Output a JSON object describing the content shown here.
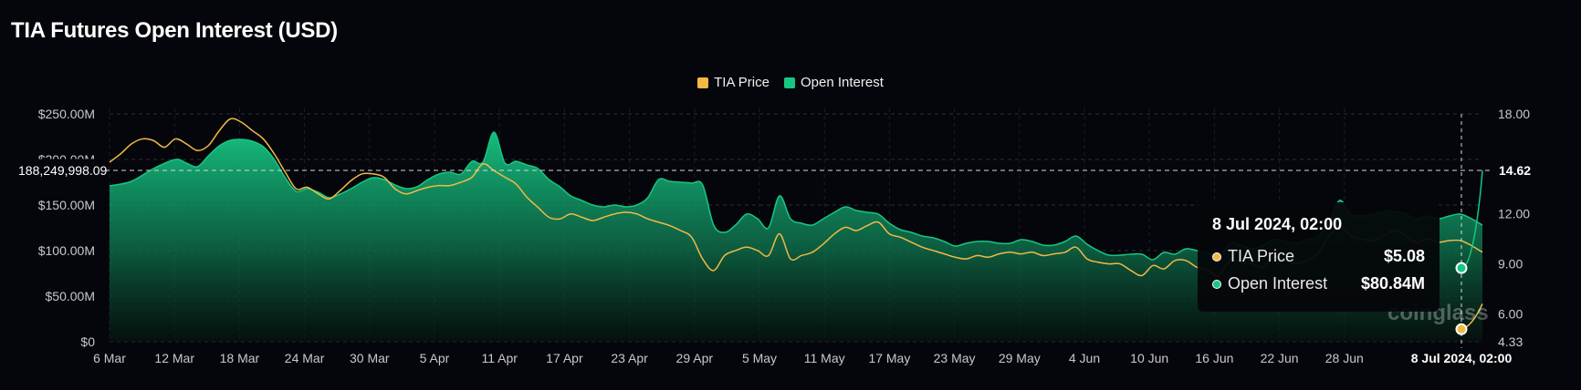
{
  "title": "TIA Futures Open Interest (USD)",
  "legend": [
    {
      "name": "TIA Price",
      "color": "#f3b944"
    },
    {
      "name": "Open Interest",
      "color": "#16c784"
    }
  ],
  "watermark": "coinglass",
  "tooltip": {
    "title": "8 Jul 2024, 02:00",
    "rows": [
      {
        "name": "TIA Price",
        "value": "$5.08",
        "color": "#f3b944"
      },
      {
        "name": "Open Interest",
        "value": "$80.84M",
        "color": "#16c784"
      }
    ]
  },
  "crosshair": {
    "y_label": "188,249,998.09",
    "y2_label": "14.62",
    "x_label": "8 Jul 2024, 02:00"
  },
  "chart_data": {
    "type": "area",
    "title": "TIA Futures Open Interest (USD)",
    "x_ticks": [
      "6 Mar",
      "12 Mar",
      "18 Mar",
      "24 Mar",
      "30 Mar",
      "5 Apr",
      "11 Apr",
      "17 Apr",
      "23 Apr",
      "29 Apr",
      "5 May",
      "11 May",
      "17 May",
      "23 May",
      "29 May",
      "4 Jun",
      "10 Jun",
      "16 Jun",
      "22 Jun",
      "28 Jun"
    ],
    "y_left": {
      "ticks": [
        "$0",
        "$50.00M",
        "$100.00M",
        "$150.00M",
        "$200.00M",
        "$250.00M"
      ],
      "min": 0,
      "max": 250
    },
    "y_right": {
      "ticks": [
        "$4.33",
        "$6.00",
        "$9.00",
        "$12.00",
        "$14.62",
        "$18.00"
      ],
      "min": 4.33,
      "max": 18
    },
    "x_range": [
      0,
      125
    ],
    "series": [
      {
        "name": "Open Interest",
        "unit": "$M",
        "axis": "left",
        "color": "#16c784",
        "points": [
          [
            0,
            171
          ],
          [
            2,
            176
          ],
          [
            4,
            190
          ],
          [
            6,
            200
          ],
          [
            7,
            196
          ],
          [
            8,
            192
          ],
          [
            9,
            204
          ],
          [
            10,
            215
          ],
          [
            11,
            221
          ],
          [
            12,
            222
          ],
          [
            13,
            220
          ],
          [
            14,
            214
          ],
          [
            15,
            200
          ],
          [
            16,
            180
          ],
          [
            17,
            165
          ],
          [
            18,
            168
          ],
          [
            19,
            164
          ],
          [
            20,
            158
          ],
          [
            21,
            162
          ],
          [
            22,
            168
          ],
          [
            23,
            175
          ],
          [
            24,
            180
          ],
          [
            25,
            178
          ],
          [
            26,
            172
          ],
          [
            27,
            168
          ],
          [
            28,
            170
          ],
          [
            29,
            178
          ],
          [
            30,
            184
          ],
          [
            31,
            186
          ],
          [
            32,
            184
          ],
          [
            33,
            198
          ],
          [
            34,
            197
          ],
          [
            35,
            230
          ],
          [
            36,
            196
          ],
          [
            37,
            198
          ],
          [
            38,
            194
          ],
          [
            39,
            190
          ],
          [
            40,
            178
          ],
          [
            41,
            170
          ],
          [
            42,
            160
          ],
          [
            43,
            155
          ],
          [
            44,
            150
          ],
          [
            45,
            148
          ],
          [
            46,
            150
          ],
          [
            47,
            148
          ],
          [
            48,
            150
          ],
          [
            49,
            158
          ],
          [
            50,
            178
          ],
          [
            51,
            176
          ],
          [
            52,
            175
          ],
          [
            53,
            174
          ],
          [
            54,
            172
          ],
          [
            55,
            128
          ],
          [
            56,
            120
          ],
          [
            57,
            128
          ],
          [
            58,
            140
          ],
          [
            59,
            135
          ],
          [
            60,
            125
          ],
          [
            61,
            160
          ],
          [
            62,
            135
          ],
          [
            63,
            130
          ],
          [
            64,
            128
          ],
          [
            65,
            135
          ],
          [
            66,
            142
          ],
          [
            67,
            148
          ],
          [
            68,
            144
          ],
          [
            69,
            142
          ],
          [
            70,
            140
          ],
          [
            71,
            130
          ],
          [
            72,
            123
          ],
          [
            73,
            120
          ],
          [
            74,
            116
          ],
          [
            75,
            114
          ],
          [
            76,
            110
          ],
          [
            77,
            105
          ],
          [
            78,
            108
          ],
          [
            79,
            110
          ],
          [
            80,
            110
          ],
          [
            81,
            108
          ],
          [
            82,
            108
          ],
          [
            83,
            112
          ],
          [
            84,
            110
          ],
          [
            85,
            106
          ],
          [
            86,
            106
          ],
          [
            87,
            110
          ],
          [
            88,
            116
          ],
          [
            89,
            107
          ],
          [
            90,
            100
          ],
          [
            91,
            95
          ],
          [
            92,
            95
          ],
          [
            93,
            96
          ],
          [
            94,
            96
          ],
          [
            95,
            90
          ],
          [
            96,
            98
          ],
          [
            97,
            96
          ],
          [
            98,
            102
          ],
          [
            99,
            100
          ],
          [
            100,
            97
          ],
          [
            101,
            92
          ],
          [
            102,
            108
          ],
          [
            103,
            106
          ],
          [
            104,
            102
          ],
          [
            105,
            105
          ],
          [
            106,
            112
          ],
          [
            107,
            110
          ],
          [
            108,
            108
          ],
          [
            109,
            112
          ],
          [
            110,
            115
          ],
          [
            111,
            130
          ],
          [
            112,
            155
          ],
          [
            113,
            140
          ],
          [
            114,
            138
          ],
          [
            115,
            140
          ],
          [
            116,
            143
          ],
          [
            117,
            143
          ],
          [
            118,
            140
          ],
          [
            119,
            135
          ],
          [
            120,
            138
          ],
          [
            121,
            135
          ],
          [
            122,
            138
          ],
          [
            123,
            140
          ],
          [
            124,
            135
          ],
          [
            125,
            128
          ]
        ]
      },
      {
        "name": "TIA Price",
        "unit": "$",
        "axis": "right",
        "color": "#f3b944",
        "points": [
          [
            0,
            15.1
          ],
          [
            1,
            15.6
          ],
          [
            2,
            16.2
          ],
          [
            3,
            16.5
          ],
          [
            4,
            16.4
          ],
          [
            5,
            16.0
          ],
          [
            6,
            16.5
          ],
          [
            7,
            16.2
          ],
          [
            8,
            15.8
          ],
          [
            9,
            16.1
          ],
          [
            10,
            17.0
          ],
          [
            11,
            17.7
          ],
          [
            12,
            17.5
          ],
          [
            13,
            17.0
          ],
          [
            14,
            16.5
          ],
          [
            15,
            15.6
          ],
          [
            16,
            14.5
          ],
          [
            17,
            13.5
          ],
          [
            18,
            13.6
          ],
          [
            19,
            13.2
          ],
          [
            20,
            12.9
          ],
          [
            21,
            13.4
          ],
          [
            22,
            14.0
          ],
          [
            23,
            14.4
          ],
          [
            24,
            14.4
          ],
          [
            25,
            14.2
          ],
          [
            26,
            13.5
          ],
          [
            27,
            13.2
          ],
          [
            28,
            13.4
          ],
          [
            29,
            13.6
          ],
          [
            30,
            13.7
          ],
          [
            31,
            13.7
          ],
          [
            32,
            13.9
          ],
          [
            33,
            14.2
          ],
          [
            34,
            15.0
          ],
          [
            35,
            14.6
          ],
          [
            36,
            14.2
          ],
          [
            37,
            13.8
          ],
          [
            38,
            13.0
          ],
          [
            39,
            12.4
          ],
          [
            40,
            11.8
          ],
          [
            41,
            11.7
          ],
          [
            42,
            12.0
          ],
          [
            43,
            11.8
          ],
          [
            44,
            11.6
          ],
          [
            45,
            11.8
          ],
          [
            46,
            12.0
          ],
          [
            47,
            12.1
          ],
          [
            48,
            12.0
          ],
          [
            49,
            11.7
          ],
          [
            50,
            11.5
          ],
          [
            51,
            11.3
          ],
          [
            52,
            11.0
          ],
          [
            53,
            10.6
          ],
          [
            54,
            9.3
          ],
          [
            55,
            8.6
          ],
          [
            56,
            9.5
          ],
          [
            57,
            9.8
          ],
          [
            58,
            10.0
          ],
          [
            59,
            9.8
          ],
          [
            60,
            9.5
          ],
          [
            61,
            10.8
          ],
          [
            62,
            9.3
          ],
          [
            63,
            9.5
          ],
          [
            64,
            9.7
          ],
          [
            65,
            10.2
          ],
          [
            66,
            10.8
          ],
          [
            67,
            11.2
          ],
          [
            68,
            11.0
          ],
          [
            69,
            11.3
          ],
          [
            70,
            11.5
          ],
          [
            71,
            10.8
          ],
          [
            72,
            10.6
          ],
          [
            73,
            10.3
          ],
          [
            74,
            10.0
          ],
          [
            75,
            9.8
          ],
          [
            76,
            9.6
          ],
          [
            77,
            9.4
          ],
          [
            78,
            9.3
          ],
          [
            79,
            9.5
          ],
          [
            80,
            9.4
          ],
          [
            81,
            9.6
          ],
          [
            82,
            9.7
          ],
          [
            83,
            9.6
          ],
          [
            84,
            9.7
          ],
          [
            85,
            9.5
          ],
          [
            86,
            9.6
          ],
          [
            87,
            9.7
          ],
          [
            88,
            10.0
          ],
          [
            89,
            9.3
          ],
          [
            90,
            9.1
          ],
          [
            91,
            9.0
          ],
          [
            92,
            9.0
          ],
          [
            93,
            8.6
          ],
          [
            94,
            8.3
          ],
          [
            95,
            8.9
          ],
          [
            96,
            8.7
          ],
          [
            97,
            9.2
          ],
          [
            98,
            9.2
          ],
          [
            99,
            8.8
          ],
          [
            100,
            8.6
          ],
          [
            101,
            8.3
          ],
          [
            102,
            9.2
          ],
          [
            103,
            9.1
          ],
          [
            104,
            9.0
          ],
          [
            105,
            8.8
          ],
          [
            106,
            9.4
          ],
          [
            107,
            9.2
          ],
          [
            108,
            9.0
          ],
          [
            109,
            9.2
          ],
          [
            110,
            9.6
          ],
          [
            111,
            10.6
          ],
          [
            112,
            11.3
          ],
          [
            113,
            10.7
          ],
          [
            114,
            10.5
          ],
          [
            115,
            10.4
          ],
          [
            116,
            10.7
          ],
          [
            117,
            11.0
          ],
          [
            118,
            10.7
          ],
          [
            119,
            10.3
          ],
          [
            120,
            10.5
          ],
          [
            121,
            10.3
          ],
          [
            122,
            10.4
          ],
          [
            123,
            10.4
          ],
          [
            124,
            10.1
          ],
          [
            125,
            9.7
          ]
        ]
      }
    ],
    "grid": true,
    "legend_position": "top-center"
  }
}
